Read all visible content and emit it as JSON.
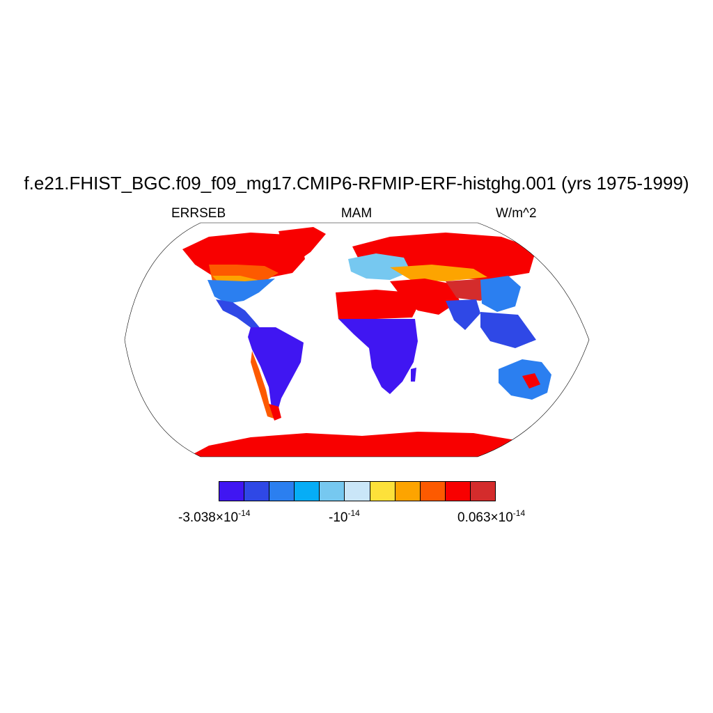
{
  "title": "f.e21.FHIST_BGC.f09_f09_mg17.CMIP6-RFMIP-ERF-histghg.001 (yrs 1975-1999)",
  "left_string": "ERRSEB",
  "center_string": "MAM",
  "right_string": "W/m^2",
  "colorbar": {
    "colors": [
      "#4016f2",
      "#2f48e6",
      "#2b7ff0",
      "#06adf6",
      "#76c8f0",
      "#cae6f8",
      "#fde13a",
      "#fda400",
      "#fd5a00",
      "#f80000",
      "#d42c2c"
    ],
    "labels": [
      {
        "mantissa": "-3.038",
        "times": "×",
        "base": "10",
        "exponent": "-14"
      },
      {
        "mantissa": "-",
        "times": "",
        "base": "10",
        "exponent": "-14"
      },
      {
        "mantissa": "0.063",
        "times": "×",
        "base": "10",
        "exponent": "-14"
      }
    ]
  },
  "map": {
    "projection": "Robinson",
    "background": "#ffffff",
    "outline_color": "#000000"
  }
}
